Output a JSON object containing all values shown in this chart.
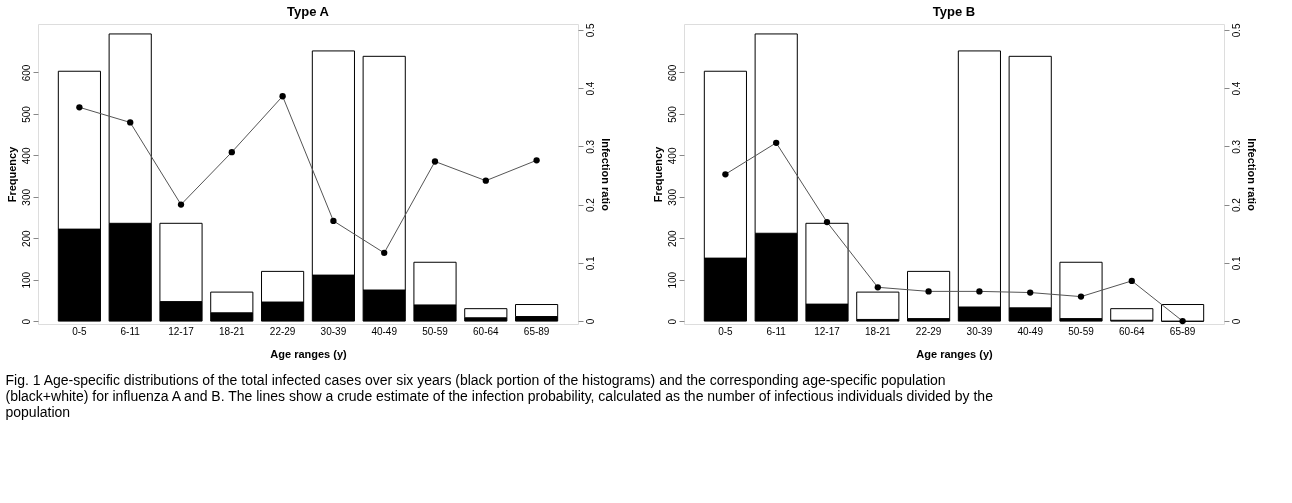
{
  "chart_data": [
    {
      "type": "bar",
      "stacked": true,
      "title": "Type A",
      "xlabel": "Age ranges (y)",
      "ylabel": "Frequency",
      "y2label": "Infection ratio",
      "categories": [
        "0-5",
        "6-11",
        "12-17",
        "18-21",
        "22-29",
        "30-39",
        "40-49",
        "50-59",
        "60-64",
        "65-89"
      ],
      "series": [
        {
          "color": "#000000",
          "values": [
            222,
            236,
            47,
            20,
            46,
            111,
            75,
            39,
            8,
            11
          ]
        },
        {
          "color": "#ffffff",
          "values": [
            381,
            457,
            189,
            50,
            74,
            541,
            564,
            103,
            22,
            29
          ]
        },
        {
          "type": "line",
          "axis": "y2",
          "color": "#555555",
          "marker": "circle",
          "values": [
            0.367,
            0.341,
            0.2,
            0.29,
            0.386,
            0.172,
            0.117,
            0.274,
            0.241,
            0.276
          ]
        }
      ],
      "ylim": [
        -7,
        717
      ],
      "yticks": [
        0,
        100,
        200,
        300,
        400,
        500,
        600
      ],
      "y2lim": [
        -0.005,
        0.51
      ],
      "y2ticks": [
        0,
        0.1,
        0.2,
        0.3,
        0.4,
        0.5
      ],
      "grid": false,
      "annotations": [
        "Fig. 1 Age-specific distributions of the total infected cases over six years (black portion of the histograms) and the corresponding age-specific population (black+white) for influenza A and B. The lines show a crude estimate of the infection probability, calculated as the number of infectious individuals divided by the population"
      ]
    },
    {
      "type": "bar",
      "stacked": true,
      "title": "Type B",
      "xlabel": "Age ranges (y)",
      "ylabel": "Frequency",
      "y2label": "Infection ratio",
      "categories": [
        "0-5",
        "6-11",
        "12-17",
        "18-21",
        "22-29",
        "30-39",
        "40-49",
        "50-59",
        "60-64",
        "65-89"
      ],
      "series": [
        {
          "color": "#000000",
          "values": [
            152,
            212,
            41,
            4,
            6,
            34,
            32,
            6,
            2,
            0
          ]
        },
        {
          "color": "#ffffff",
          "values": [
            451,
            481,
            195,
            66,
            114,
            618,
            607,
            136,
            28,
            40
          ]
        },
        {
          "type": "line",
          "axis": "y2",
          "color": "#555555",
          "marker": "circle",
          "values": [
            0.252,
            0.306,
            0.17,
            0.058,
            0.051,
            0.051,
            0.049,
            0.042,
            0.069,
            0.0
          ]
        }
      ],
      "ylim": [
        -7,
        717
      ],
      "yticks": [
        0,
        100,
        200,
        300,
        400,
        500,
        600
      ],
      "y2lim": [
        -0.005,
        0.51
      ],
      "y2ticks": [
        0,
        0.1,
        0.2,
        0.3,
        0.4,
        0.5
      ],
      "grid": false
    }
  ]
}
